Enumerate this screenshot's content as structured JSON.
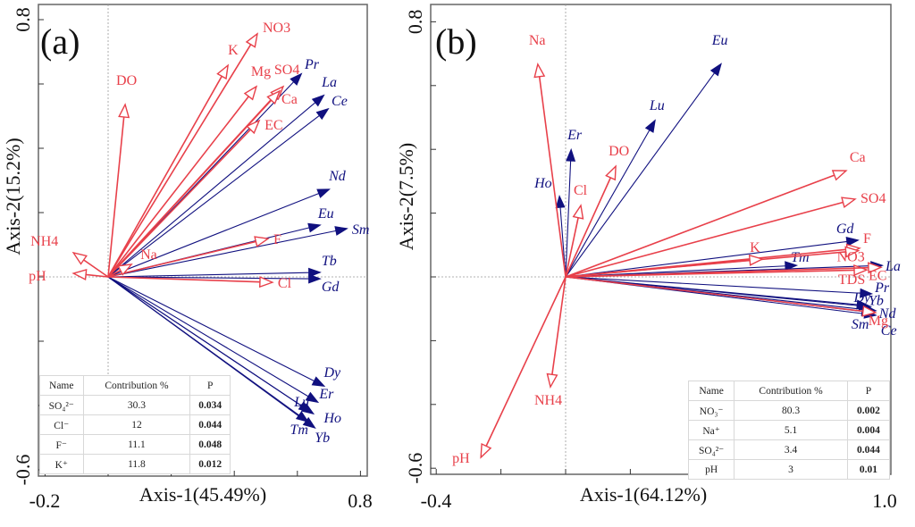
{
  "colors": {
    "env": "#e8404a",
    "ree": "#10107f",
    "axis": "#555555"
  },
  "chart_data": [
    {
      "type": "biplot",
      "panel_label": "(a)",
      "xlabel": "Axis-1(45.49%)",
      "ylabel": "Axis-2(15.2%)",
      "xlim": [
        -0.22,
        0.82
      ],
      "ylim": [
        -0.62,
        0.85
      ],
      "x_tick_labels": [
        "-0.2",
        "0.8"
      ],
      "y_tick_labels": [
        "0.8",
        "-0.6"
      ],
      "env_vectors": [
        {
          "name": "DO",
          "x": 0.054,
          "y": 0.536
        },
        {
          "name": "K",
          "x": 0.38,
          "y": 0.658
        },
        {
          "name": "NO3",
          "x": 0.473,
          "y": 0.756
        },
        {
          "name": "Mg",
          "x": 0.47,
          "y": 0.592
        },
        {
          "name": "SO4",
          "x": 0.555,
          "y": 0.592
        },
        {
          "name": "Ca",
          "x": 0.544,
          "y": 0.578
        },
        {
          "name": "EC",
          "x": 0.479,
          "y": 0.486
        },
        {
          "name": "F",
          "x": 0.507,
          "y": 0.119
        },
        {
          "name": "Cl",
          "x": 0.521,
          "y": -0.017
        },
        {
          "name": "Na",
          "x": 0.074,
          "y": 0.039
        },
        {
          "name": "NH4",
          "x": -0.11,
          "y": 0.075
        },
        {
          "name": "pH",
          "x": -0.11,
          "y": 0.011
        }
      ],
      "ree_vectors": [
        {
          "name": "Pr",
          "x": 0.612,
          "y": 0.631
        },
        {
          "name": "La",
          "x": 0.683,
          "y": 0.564
        },
        {
          "name": "Ce",
          "x": 0.697,
          "y": 0.522
        },
        {
          "name": "Nd",
          "x": 0.7,
          "y": 0.272
        },
        {
          "name": "Eu",
          "x": 0.671,
          "y": 0.161
        },
        {
          "name": "Sm",
          "x": 0.756,
          "y": 0.15
        },
        {
          "name": "Tb",
          "x": 0.671,
          "y": 0.014
        },
        {
          "name": "Gd",
          "x": 0.671,
          "y": -0.006
        },
        {
          "name": "Dy",
          "x": 0.684,
          "y": -0.339
        },
        {
          "name": "Er",
          "x": 0.664,
          "y": -0.389
        },
        {
          "name": "Lu",
          "x": 0.641,
          "y": -0.419
        },
        {
          "name": "Ho",
          "x": 0.65,
          "y": -0.425
        },
        {
          "name": "Tm",
          "x": 0.633,
          "y": -0.45
        },
        {
          "name": "Yb",
          "x": 0.655,
          "y": -0.469
        }
      ],
      "table": {
        "headers": [
          "Name",
          "Contribution %",
          "P"
        ],
        "rows": [
          [
            "SO₄²⁻",
            "30.3",
            "0.034"
          ],
          [
            "Cl⁻",
            "12",
            "0.044"
          ],
          [
            "F⁻",
            "11.1",
            "0.048"
          ],
          [
            "K⁺",
            "11.8",
            "0.012"
          ]
        ]
      }
    },
    {
      "type": "biplot",
      "panel_label": "(b)",
      "xlabel": "Axis-1(64.12%)",
      "ylabel": "Axis-2(7.5%)",
      "xlim": [
        -0.42,
        1.01
      ],
      "ylim": [
        -0.62,
        0.85
      ],
      "x_tick_labels": [
        "-0.4",
        "1.0"
      ],
      "y_tick_labels": [
        "0.8",
        "-0.6"
      ],
      "env_vectors": [
        {
          "name": "Na",
          "x": -0.086,
          "y": 0.667
        },
        {
          "name": "Cl",
          "x": 0.047,
          "y": 0.224
        },
        {
          "name": "DO",
          "x": 0.155,
          "y": 0.347
        },
        {
          "name": "Ca",
          "x": 0.867,
          "y": 0.333
        },
        {
          "name": "SO4",
          "x": 0.895,
          "y": 0.244
        },
        {
          "name": "F",
          "x": 0.909,
          "y": 0.09
        },
        {
          "name": "NO3",
          "x": 0.905,
          "y": 0.082
        },
        {
          "name": "K",
          "x": 0.608,
          "y": 0.056
        },
        {
          "name": "TDS",
          "x": 0.931,
          "y": 0.022
        },
        {
          "name": "EC",
          "x": 0.975,
          "y": 0.03
        },
        {
          "name": "Mg",
          "x": 0.958,
          "y": -0.112
        },
        {
          "name": "NH4",
          "x": -0.047,
          "y": -0.345
        },
        {
          "name": "pH",
          "x": -0.262,
          "y": -0.566
        }
      ],
      "ree_vectors": [
        {
          "name": "Eu",
          "x": 0.48,
          "y": 0.667
        },
        {
          "name": "Lu",
          "x": 0.276,
          "y": 0.49
        },
        {
          "name": "Er",
          "x": 0.017,
          "y": 0.398
        },
        {
          "name": "Ho",
          "x": -0.019,
          "y": 0.252
        },
        {
          "name": "Gd",
          "x": 0.903,
          "y": 0.115
        },
        {
          "name": "Tm",
          "x": 0.713,
          "y": 0.036
        },
        {
          "name": "La",
          "x": 0.978,
          "y": 0.036
        },
        {
          "name": "Pr",
          "x": 0.945,
          "y": -0.053
        },
        {
          "name": "Dy",
          "x": 0.935,
          "y": -0.09
        },
        {
          "name": "Yb",
          "x": 0.942,
          "y": -0.094
        },
        {
          "name": "Nd",
          "x": 0.958,
          "y": -0.106
        },
        {
          "name": "Sm",
          "x": 0.95,
          "y": -0.112
        },
        {
          "name": "Ce",
          "x": 0.958,
          "y": -0.12
        }
      ],
      "table": {
        "headers": [
          "Name",
          "Contribution %",
          "P"
        ],
        "rows": [
          [
            "NO₃⁻",
            "80.3",
            "0.002"
          ],
          [
            "Na⁺",
            "5.1",
            "0.004"
          ],
          [
            "SO₄²⁻",
            "3.4",
            "0.044"
          ],
          [
            "pH",
            "3",
            "0.01"
          ]
        ]
      }
    }
  ]
}
